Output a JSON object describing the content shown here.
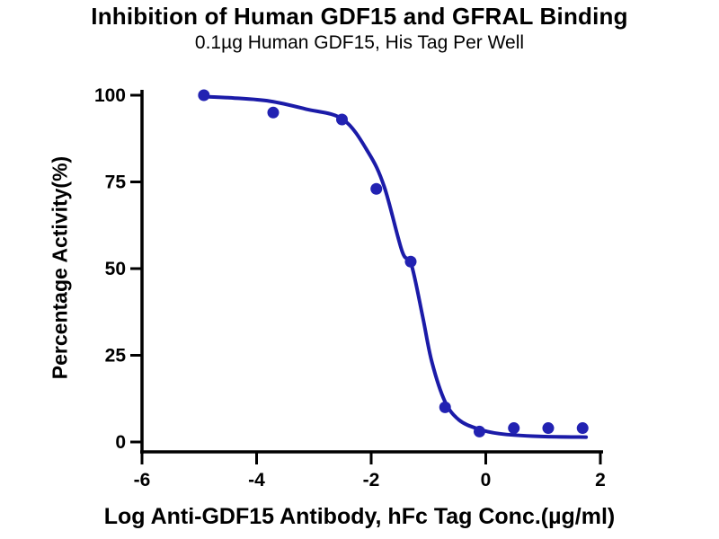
{
  "chart_data": {
    "type": "scatter",
    "title": "Inhibition of Human GDF15 and GFRAL Binding",
    "subtitle": "0.1µg Human GDF15, His Tag Per Well",
    "xlabel": "Log Anti-GDF15 Antibody, hFc Tag Conc.(µg/ml)",
    "ylabel": "Percentage Activity(%)",
    "xlim": [
      -6,
      2
    ],
    "ylim": [
      0,
      100
    ],
    "xticks": [
      -6,
      -4,
      -2,
      0,
      2
    ],
    "yticks": [
      0,
      25,
      50,
      75,
      100
    ],
    "grid": false,
    "legend": "none",
    "series_name": "Anti-GDF15 Antibody, hFc Tag",
    "x": [
      -4.92,
      -3.71,
      -2.51,
      -1.91,
      -1.31,
      -0.71,
      -0.11,
      0.49,
      1.09,
      1.69
    ],
    "y": [
      100,
      95,
      93,
      73,
      52,
      10,
      3,
      4,
      4,
      4
    ],
    "fit_curve": {
      "model": "four-parameter logistic dose-response (inhibition)",
      "samples": [
        [
          -4.92,
          99.6
        ],
        [
          -4.4,
          99.2
        ],
        [
          -3.77,
          98.3
        ],
        [
          -3.14,
          96.0
        ],
        [
          -2.49,
          93.0
        ],
        [
          -2.05,
          83.5
        ],
        [
          -1.77,
          73.5
        ],
        [
          -1.46,
          55.0
        ],
        [
          -1.3,
          51.3
        ],
        [
          -1.1,
          36.0
        ],
        [
          -0.94,
          23.0
        ],
        [
          -0.71,
          11.6
        ],
        [
          -0.47,
          6.4
        ],
        [
          -0.16,
          3.9
        ],
        [
          0.23,
          2.4
        ],
        [
          0.93,
          1.6
        ],
        [
          1.75,
          1.4
        ]
      ]
    },
    "colors": {
      "marker": "#2222b2",
      "curve": "#1b1ba8",
      "axis": "#000000",
      "text": "#000000",
      "background": "#ffffff"
    }
  }
}
